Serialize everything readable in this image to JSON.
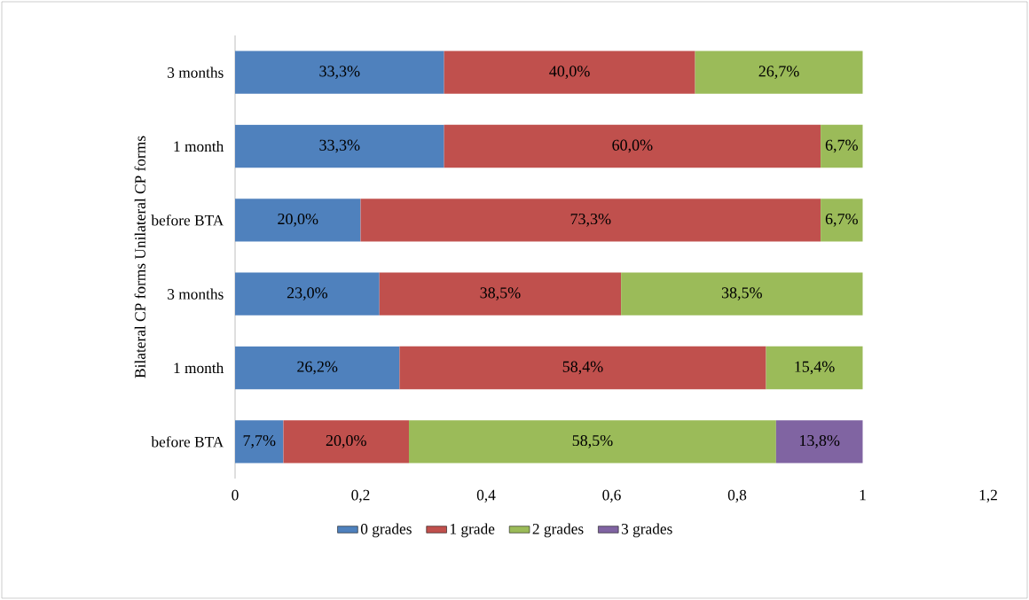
{
  "chart_data": {
    "type": "bar",
    "orientation": "horizontal",
    "stacked": true,
    "ylabel": "Bilateral CP forms Unilateral CP forms",
    "categories": [
      "3 months",
      "1 month",
      "before BTA",
      "3 months",
      "1 month",
      "before BTA"
    ],
    "series": [
      {
        "name": "0 grades",
        "color": "#4f81bd",
        "values": [
          0.333,
          0.333,
          0.2,
          0.23,
          0.262,
          0.077
        ],
        "value_labels": [
          "33,3%",
          "33,3%",
          "20,0%",
          "23,0%",
          "26,2%",
          "7,7%"
        ]
      },
      {
        "name": "1 grade",
        "color": "#c0504d",
        "values": [
          0.4,
          0.6,
          0.733,
          0.385,
          0.584,
          0.2
        ],
        "value_labels": [
          "40,0%",
          "60,0%",
          "73,3%",
          "38,5%",
          "58,4%",
          "20,0%"
        ]
      },
      {
        "name": "2 grades",
        "color": "#9bbb59",
        "values": [
          0.267,
          0.067,
          0.067,
          0.385,
          0.154,
          0.585
        ],
        "value_labels": [
          "26,7%",
          "6,7%",
          "6,7%",
          "38,5%",
          "15,4%",
          "58,5%"
        ]
      },
      {
        "name": "3 grades",
        "color": "#8064a2",
        "values": [
          null,
          null,
          null,
          null,
          null,
          0.138
        ],
        "value_labels": [
          null,
          null,
          null,
          null,
          null,
          "13,8%"
        ]
      }
    ],
    "xlim": [
      0,
      1.2
    ],
    "xticks": [
      0,
      {
        "value": 0.2,
        "label": "0,2"
      },
      {
        "value": 0.4,
        "label": "0,4"
      },
      {
        "value": 0.6,
        "label": "0,6"
      },
      {
        "value": 0.8,
        "label": "0,8"
      },
      1,
      {
        "value": 1.2,
        "label": "1,2"
      }
    ],
    "grid": false,
    "legend": "bottom"
  }
}
